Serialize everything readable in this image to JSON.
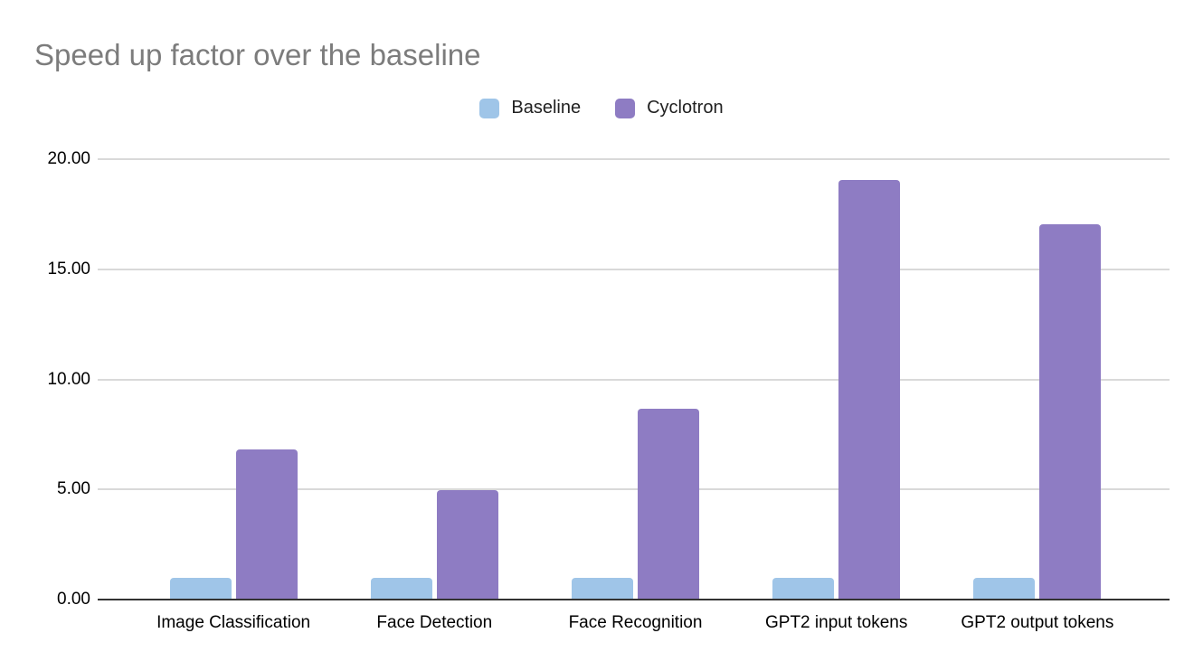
{
  "chart_data": {
    "type": "bar",
    "title": "Speed up factor over the baseline",
    "categories": [
      "Image Classification",
      "Face Detection",
      "Face Recognition",
      "GPT2 input tokens",
      "GPT2 output tokens"
    ],
    "series": [
      {
        "name": "Baseline",
        "color": "#9fc5e8",
        "values": [
          1.0,
          1.0,
          1.0,
          1.0,
          1.0
        ]
      },
      {
        "name": "Cyclotron",
        "color": "#8e7cc3",
        "values": [
          6.8,
          4.95,
          8.65,
          19.05,
          17.05
        ]
      }
    ],
    "ylim": [
      0,
      20
    ],
    "yticks": [
      0,
      5,
      10,
      15,
      20
    ],
    "ytick_labels": [
      "0.00",
      "5.00",
      "10.00",
      "15.00",
      "20.00"
    ],
    "xlabel": "",
    "ylabel": "",
    "grid": "horizontal",
    "legend_position": "top-center",
    "colors": {
      "title_text": "#7c7c7c",
      "legend_text": "#212121",
      "axis_text": "#000000",
      "gridline": "#d9d9d9",
      "axis_line": "#333333",
      "background": "#ffffff"
    }
  }
}
